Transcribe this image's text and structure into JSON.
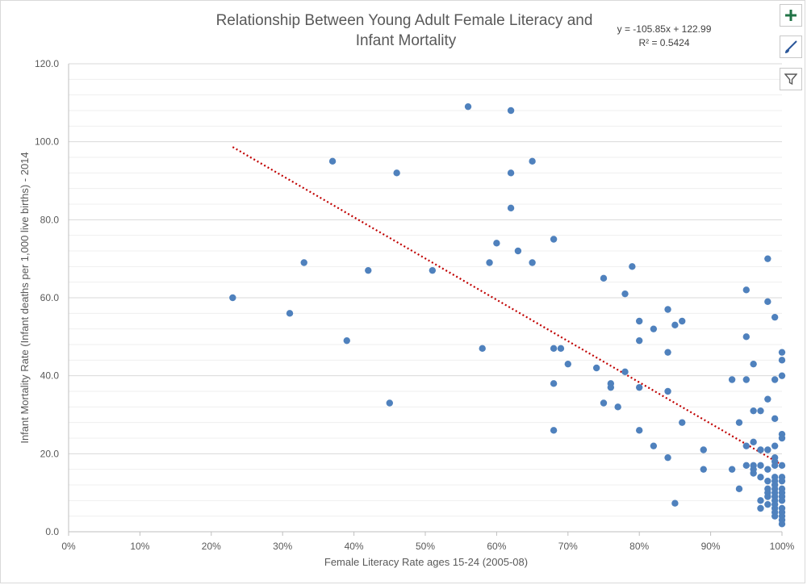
{
  "chart_data": {
    "type": "scatter",
    "title_lines": [
      "Relationship Between Young Adult Female Literacy and",
      "Infant Mortality"
    ],
    "xlabel": "Female Literacy Rate ages 15-24 (2005-08)",
    "ylabel": "Infant Mortality Rate (Infant deaths per 1,000 live births) - 2014",
    "xlim": [
      0,
      1
    ],
    "ylim": [
      0,
      120
    ],
    "x_ticks": [
      "0%",
      "10%",
      "20%",
      "30%",
      "40%",
      "50%",
      "60%",
      "70%",
      "80%",
      "90%",
      "100%"
    ],
    "y_ticks": [
      "0.0",
      "20.0",
      "40.0",
      "60.0",
      "80.0",
      "100.0",
      "120.0"
    ],
    "grid": true,
    "point_color": "#4f81bd",
    "trend_color": "#c00000",
    "trendline": {
      "slope": -105.85,
      "intercept": 122.99,
      "x_range": [
        0.23,
        1.0
      ]
    },
    "equation": "y = -105.85x + 122.99",
    "r_squared": "R² = 0.5424",
    "points": [
      [
        0.23,
        60
      ],
      [
        0.31,
        56
      ],
      [
        0.33,
        69
      ],
      [
        0.37,
        95
      ],
      [
        0.39,
        49
      ],
      [
        0.42,
        67
      ],
      [
        0.45,
        33
      ],
      [
        0.46,
        92
      ],
      [
        0.51,
        67
      ],
      [
        0.56,
        109
      ],
      [
        0.58,
        47
      ],
      [
        0.59,
        69
      ],
      [
        0.6,
        74
      ],
      [
        0.62,
        108
      ],
      [
        0.62,
        92
      ],
      [
        0.62,
        83
      ],
      [
        0.63,
        72
      ],
      [
        0.65,
        95
      ],
      [
        0.65,
        69
      ],
      [
        0.68,
        75
      ],
      [
        0.68,
        47
      ],
      [
        0.69,
        47
      ],
      [
        0.68,
        38
      ],
      [
        0.68,
        26
      ],
      [
        0.7,
        43
      ],
      [
        0.74,
        42
      ],
      [
        0.75,
        65
      ],
      [
        0.75,
        33
      ],
      [
        0.76,
        38
      ],
      [
        0.76,
        37
      ],
      [
        0.77,
        32
      ],
      [
        0.78,
        61
      ],
      [
        0.78,
        41
      ],
      [
        0.79,
        68
      ],
      [
        0.8,
        54
      ],
      [
        0.8,
        49
      ],
      [
        0.8,
        37
      ],
      [
        0.8,
        26
      ],
      [
        0.82,
        52
      ],
      [
        0.82,
        22
      ],
      [
        0.84,
        57
      ],
      [
        0.84,
        46
      ],
      [
        0.84,
        36
      ],
      [
        0.84,
        19
      ],
      [
        0.85,
        53
      ],
      [
        0.85,
        7.3
      ],
      [
        0.86,
        54
      ],
      [
        0.86,
        28
      ],
      [
        0.89,
        21
      ],
      [
        0.89,
        16
      ],
      [
        0.93,
        39
      ],
      [
        0.93,
        16
      ],
      [
        0.94,
        28
      ],
      [
        0.94,
        11
      ],
      [
        0.95,
        62
      ],
      [
        0.95,
        50
      ],
      [
        0.95,
        39
      ],
      [
        0.95,
        22
      ],
      [
        0.95,
        17
      ],
      [
        0.96,
        43
      ],
      [
        0.96,
        31
      ],
      [
        0.96,
        23
      ],
      [
        0.96,
        17
      ],
      [
        0.96,
        16
      ],
      [
        0.96,
        15
      ],
      [
        0.97,
        31
      ],
      [
        0.97,
        21
      ],
      [
        0.97,
        17
      ],
      [
        0.97,
        14
      ],
      [
        0.97,
        8
      ],
      [
        0.97,
        6
      ],
      [
        0.98,
        70
      ],
      [
        0.98,
        59
      ],
      [
        0.98,
        34
      ],
      [
        0.98,
        21
      ],
      [
        0.98,
        16
      ],
      [
        0.98,
        13
      ],
      [
        0.98,
        11
      ],
      [
        0.98,
        10
      ],
      [
        0.98,
        9
      ],
      [
        0.98,
        7
      ],
      [
        0.99,
        55
      ],
      [
        0.99,
        39
      ],
      [
        0.99,
        29
      ],
      [
        0.99,
        22
      ],
      [
        0.99,
        19
      ],
      [
        0.99,
        18
      ],
      [
        0.99,
        17
      ],
      [
        0.99,
        14
      ],
      [
        0.99,
        13
      ],
      [
        0.99,
        12
      ],
      [
        0.99,
        11
      ],
      [
        0.99,
        10
      ],
      [
        0.99,
        9
      ],
      [
        0.99,
        8
      ],
      [
        0.99,
        7
      ],
      [
        0.99,
        6
      ],
      [
        0.99,
        5
      ],
      [
        0.99,
        4
      ],
      [
        1.0,
        46
      ],
      [
        1.0,
        44
      ],
      [
        1.0,
        40
      ],
      [
        1.0,
        25
      ],
      [
        1.0,
        24
      ],
      [
        1.0,
        17
      ],
      [
        1.0,
        14
      ],
      [
        1.0,
        13
      ],
      [
        1.0,
        11
      ],
      [
        1.0,
        10
      ],
      [
        1.0,
        9
      ],
      [
        1.0,
        8
      ],
      [
        1.0,
        6
      ],
      [
        1.0,
        5
      ],
      [
        1.0,
        4
      ],
      [
        1.0,
        3
      ],
      [
        1.0,
        2
      ]
    ]
  },
  "toolbar": {
    "buttons": [
      {
        "name": "chart-elements-button",
        "icon": "plus-icon",
        "color": "#217346"
      },
      {
        "name": "chart-styles-button",
        "icon": "paintbrush-icon",
        "color": "#2b579a"
      },
      {
        "name": "chart-filters-button",
        "icon": "filter-icon",
        "color": "#595959"
      }
    ]
  }
}
